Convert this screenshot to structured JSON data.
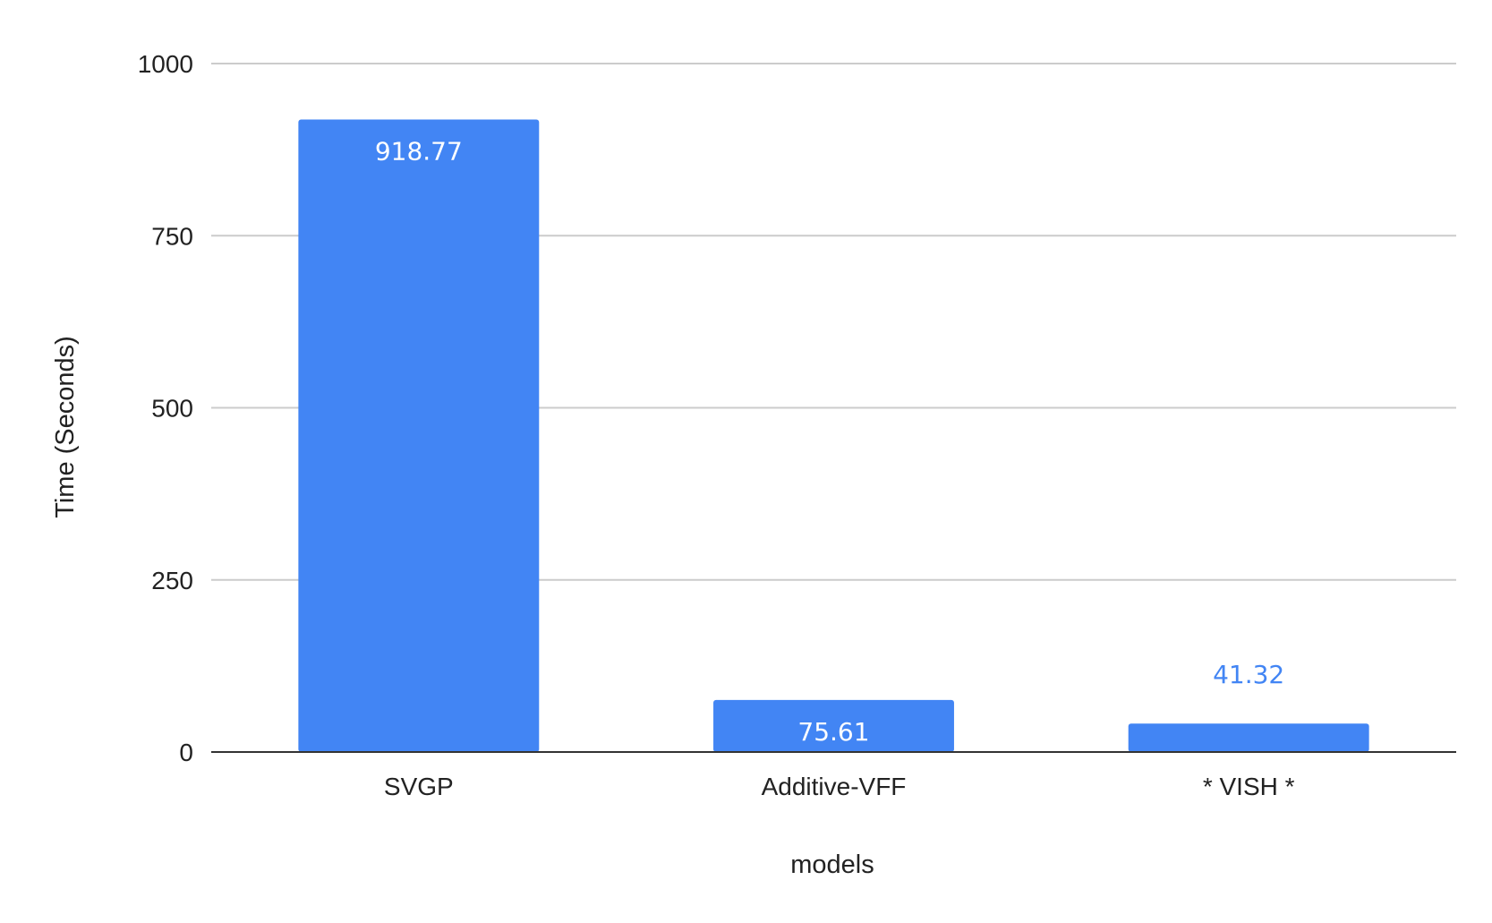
{
  "chart_data": {
    "type": "bar",
    "categories": [
      "SVGP",
      "Additive-VFF",
      "* VISH *"
    ],
    "values": [
      918.77,
      75.61,
      41.32
    ],
    "data_labels": [
      "918.77",
      "75.61",
      "41.32"
    ],
    "xlabel": "models",
    "ylabel": "Time (Seconds)",
    "ylim": [
      0,
      1000
    ],
    "yticks": [
      0,
      250,
      500,
      750,
      1000
    ],
    "grid": true,
    "legend": "none",
    "bar_color": "#4285F4",
    "label_inside_color": "#ffffff",
    "label_outside_color": "#4285F4",
    "gridline_color": "#cccccc",
    "axis_color": "#333333"
  }
}
